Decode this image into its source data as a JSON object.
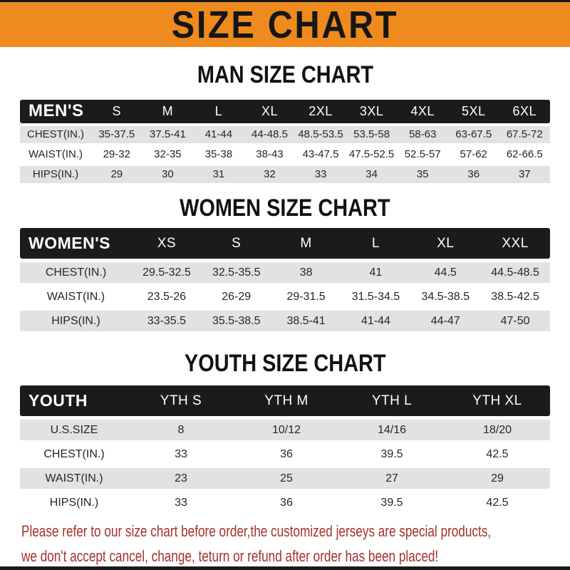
{
  "banner": {
    "title": "SIZE CHART"
  },
  "chart_data": [
    {
      "type": "table",
      "title": "MAN SIZE CHART",
      "corner_label": "MEN'S",
      "columns": [
        "S",
        "M",
        "L",
        "XL",
        "2XL",
        "3XL",
        "4XL",
        "5XL",
        "6XL"
      ],
      "rows": [
        {
          "label": "CHEST(IN.)",
          "values": [
            "35-37.5",
            "37.5-41",
            "41-44",
            "44-48.5",
            "48.5-53.5",
            "53.5-58",
            "58-63",
            "63-67.5",
            "67.5-72"
          ]
        },
        {
          "label": "WAIST(IN.)",
          "values": [
            "29-32",
            "32-35",
            "35-38",
            "38-43",
            "43-47.5",
            "47.5-52.5",
            "52.5-57",
            "57-62",
            "62-66.5"
          ]
        },
        {
          "label": "HIPS(IN.)",
          "values": [
            "29",
            "30",
            "31",
            "32",
            "33",
            "34",
            "35",
            "36",
            "37"
          ]
        }
      ]
    },
    {
      "type": "table",
      "title": "WOMEN SIZE CHART",
      "corner_label": "WOMEN'S",
      "columns": [
        "XS",
        "S",
        "M",
        "L",
        "XL",
        "XXL"
      ],
      "rows": [
        {
          "label": "CHEST(IN.)",
          "values": [
            "29.5-32.5",
            "32.5-35.5",
            "38",
            "41",
            "44.5",
            "44.5-48.5"
          ]
        },
        {
          "label": "WAIST(IN.)",
          "values": [
            "23.5-26",
            "26-29",
            "29-31.5",
            "31.5-34.5",
            "34.5-38.5",
            "38.5-42.5"
          ]
        },
        {
          "label": "HIPS(IN.)",
          "values": [
            "33-35.5",
            "35.5-38.5",
            "38.5-41",
            "41-44",
            "44-47",
            "47-50"
          ]
        }
      ]
    },
    {
      "type": "table",
      "title": "YOUTH SIZE CHART",
      "corner_label": "YOUTH",
      "columns": [
        "YTH S",
        "YTH M",
        "YTH L",
        "YTH XL"
      ],
      "rows": [
        {
          "label": "U.S.SIZE",
          "values": [
            "8",
            "10/12",
            "14/16",
            "18/20"
          ]
        },
        {
          "label": "CHEST(IN.)",
          "values": [
            "33",
            "36",
            "39.5",
            "42.5"
          ]
        },
        {
          "label": "WAIST(IN.)",
          "values": [
            "23",
            "25",
            "27",
            "29"
          ]
        },
        {
          "label": "HIPS(IN.)",
          "values": [
            "33",
            "36",
            "39.5",
            "42.5"
          ]
        }
      ]
    }
  ],
  "footer": {
    "line1": "Please refer to our size chart before order,the customized jerseys are special products,",
    "line2": "we don't accept cancel, change, teturn or refund after order has been placed!"
  },
  "colors": {
    "banner_bg": "#EE8A1E",
    "banner_text": "#161616",
    "header_band_bg": "#1B1B1D",
    "header_band_text": "#FFFFFF",
    "row_shade_bg": "#E2E2E2",
    "body_text": "#262626",
    "footer_text": "#A6302A",
    "bottom_bar": "#1A1A1A"
  }
}
